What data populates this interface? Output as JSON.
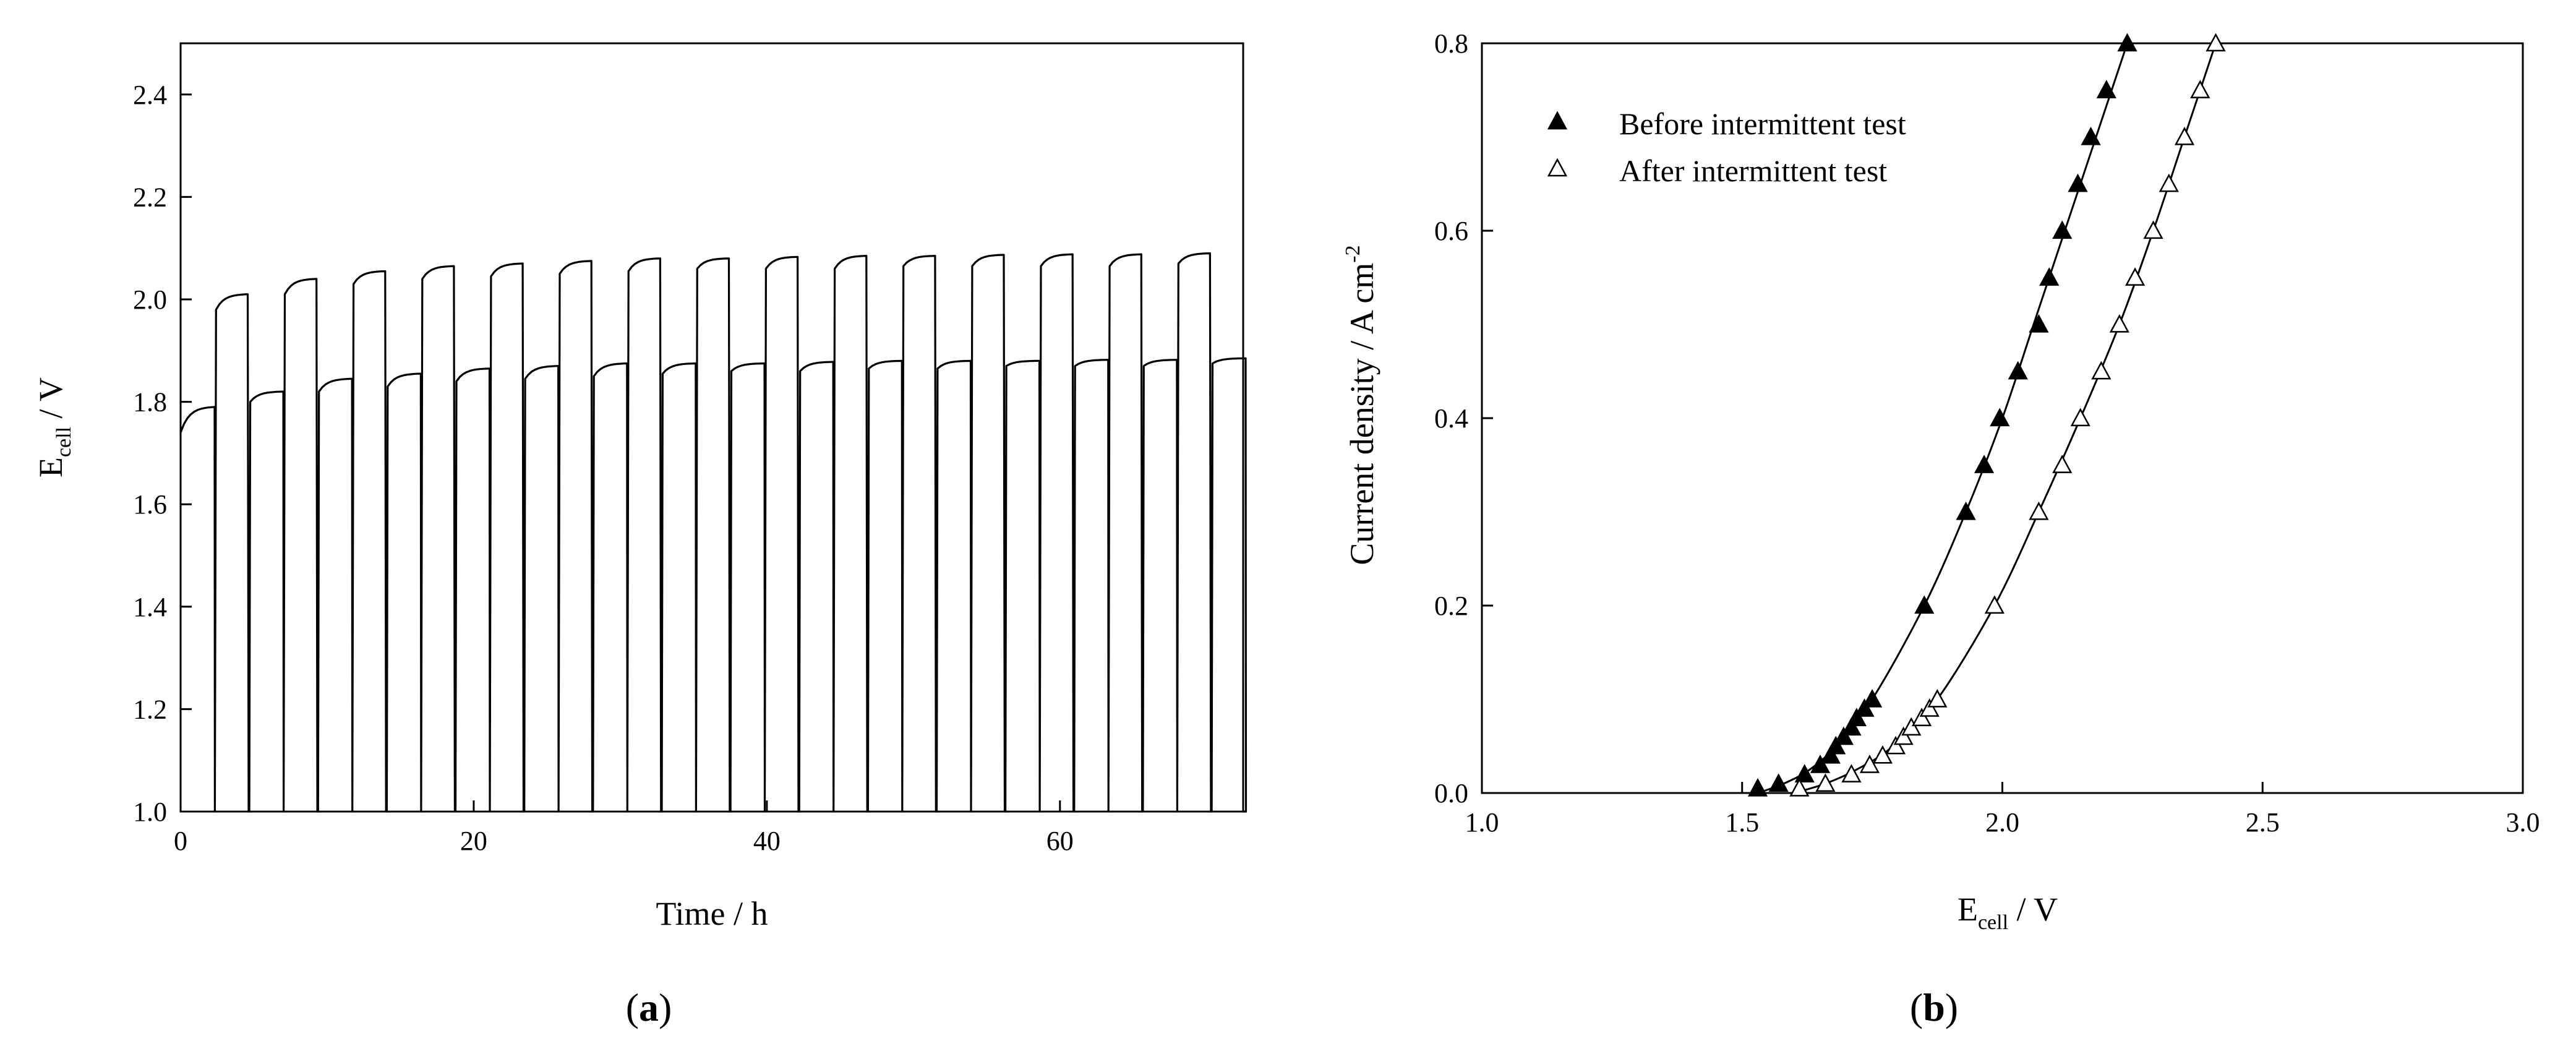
{
  "panel_a": {
    "label": {
      "open": "(",
      "letter": "a",
      "close": ")"
    },
    "xlabel": "Time / h",
    "ylabel": {
      "main": "E",
      "sub": "cell",
      "rest": " / V"
    }
  },
  "panel_b": {
    "label": {
      "open": "(",
      "letter": "b",
      "close": ")"
    },
    "xlabel": {
      "main": "E",
      "sub": "cell",
      "rest": " / V"
    },
    "ylabel": {
      "main": "Current density / A cm",
      "sup": "-2"
    }
  },
  "chart_data": [
    {
      "id": "a",
      "type": "line",
      "x_ticks": [
        0,
        20,
        40,
        60
      ],
      "y_ticks": [
        "1.0",
        "1.2",
        "1.4",
        "1.6",
        "1.8",
        "2.0",
        "2.2",
        "2.4"
      ],
      "xlim": [
        0,
        72.5
      ],
      "ylim": [
        1.0,
        2.5
      ],
      "cycle_period_h": 4.69,
      "low_phase_start_V": [
        1.74,
        1.8,
        1.82,
        1.83,
        1.84,
        1.845,
        1.85,
        1.855,
        1.86,
        1.86,
        1.865,
        1.865,
        1.87,
        1.87,
        1.87,
        1.875
      ],
      "low_phase_end_V": [
        1.79,
        1.82,
        1.845,
        1.855,
        1.865,
        1.87,
        1.875,
        1.875,
        1.875,
        1.878,
        1.88,
        1.88,
        1.88,
        1.882,
        1.882,
        1.885
      ],
      "high_phase_start_V": [
        1.98,
        2.01,
        2.03,
        2.04,
        2.045,
        2.05,
        2.055,
        2.06,
        2.06,
        2.06,
        2.065,
        2.065,
        2.065,
        2.065,
        2.07
      ],
      "high_phase_end_V": [
        2.01,
        2.04,
        2.055,
        2.065,
        2.07,
        2.075,
        2.08,
        2.08,
        2.083,
        2.085,
        2.085,
        2.087,
        2.088,
        2.088,
        2.09
      ],
      "min_voltage_V": 1.0
    },
    {
      "id": "b",
      "type": "scatter",
      "x_ticks": [
        "1.0",
        "1.5",
        "2.0",
        "2.5",
        "3.0"
      ],
      "y_ticks": [
        "0.0",
        "0.2",
        "0.4",
        "0.6",
        "0.8"
      ],
      "xlim": [
        1.0,
        3.0
      ],
      "ylim": [
        0.0,
        0.8
      ],
      "legend_position": "top-left",
      "series": [
        {
          "name": "Before intermittent test",
          "marker": "filled-triangle",
          "points": [
            [
              1.53,
              0.005
            ],
            [
              1.57,
              0.01
            ],
            [
              1.62,
              0.02
            ],
            [
              1.65,
              0.03
            ],
            [
              1.67,
              0.04
            ],
            [
              1.68,
              0.05
            ],
            [
              1.695,
              0.06
            ],
            [
              1.71,
              0.07
            ],
            [
              1.72,
              0.08
            ],
            [
              1.735,
              0.09
            ],
            [
              1.75,
              0.1
            ],
            [
              1.85,
              0.2
            ],
            [
              1.93,
              0.3
            ],
            [
              1.965,
              0.35
            ],
            [
              1.995,
              0.4
            ],
            [
              2.03,
              0.45
            ],
            [
              2.07,
              0.5
            ],
            [
              2.09,
              0.55
            ],
            [
              2.115,
              0.6
            ],
            [
              2.145,
              0.65
            ],
            [
              2.17,
              0.7
            ],
            [
              2.2,
              0.75
            ],
            [
              2.24,
              0.8
            ]
          ],
          "curve": [
            [
              1.53,
              0.0
            ],
            [
              1.58,
              0.01
            ],
            [
              1.63,
              0.025
            ],
            [
              1.68,
              0.05
            ],
            [
              1.75,
              0.1
            ],
            [
              1.85,
              0.2
            ],
            [
              1.93,
              0.3
            ],
            [
              2.0,
              0.4
            ],
            [
              2.06,
              0.5
            ],
            [
              2.12,
              0.6
            ],
            [
              2.18,
              0.7
            ],
            [
              2.24,
              0.8
            ]
          ]
        },
        {
          "name": "After intermittent test",
          "marker": "open-triangle",
          "points": [
            [
              1.61,
              0.005
            ],
            [
              1.66,
              0.01
            ],
            [
              1.71,
              0.02
            ],
            [
              1.745,
              0.03
            ],
            [
              1.77,
              0.04
            ],
            [
              1.795,
              0.05
            ],
            [
              1.81,
              0.06
            ],
            [
              1.825,
              0.07
            ],
            [
              1.845,
              0.08
            ],
            [
              1.86,
              0.09
            ],
            [
              1.875,
              0.1
            ],
            [
              1.985,
              0.2
            ],
            [
              2.07,
              0.3
            ],
            [
              2.115,
              0.35
            ],
            [
              2.15,
              0.4
            ],
            [
              2.19,
              0.45
            ],
            [
              2.225,
              0.5
            ],
            [
              2.255,
              0.55
            ],
            [
              2.29,
              0.6
            ],
            [
              2.32,
              0.65
            ],
            [
              2.35,
              0.7
            ],
            [
              2.38,
              0.75
            ],
            [
              2.41,
              0.8
            ]
          ],
          "curve": [
            [
              1.6,
              0.0
            ],
            [
              1.66,
              0.01
            ],
            [
              1.72,
              0.025
            ],
            [
              1.79,
              0.05
            ],
            [
              1.875,
              0.1
            ],
            [
              1.985,
              0.2
            ],
            [
              2.07,
              0.3
            ],
            [
              2.15,
              0.4
            ],
            [
              2.225,
              0.5
            ],
            [
              2.29,
              0.6
            ],
            [
              2.35,
              0.7
            ],
            [
              2.41,
              0.8
            ]
          ]
        }
      ]
    }
  ]
}
